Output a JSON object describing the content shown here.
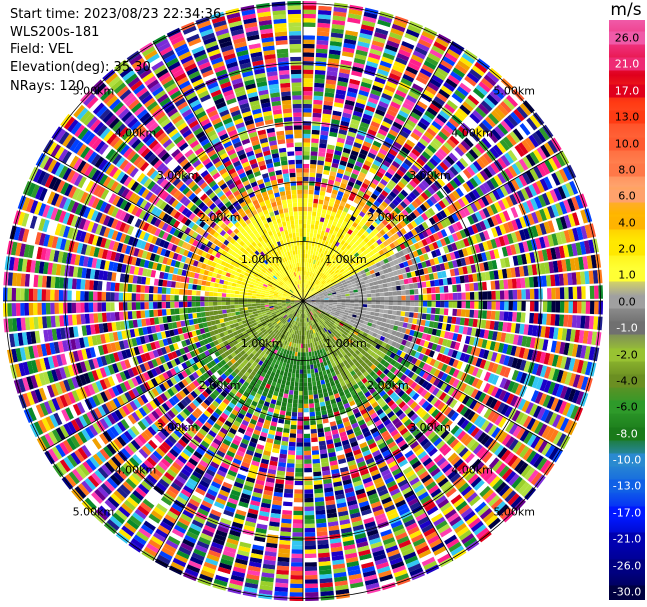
{
  "header": {
    "start_time": "Start time: 2023/08/23 22:34:36",
    "instrument": "WLS200s-181",
    "field": "Field: VEL",
    "elevation": "Elevation(deg): 35.30",
    "nrays": "NRays: 120"
  },
  "colorbar": {
    "unit": "m/s",
    "ticks": [
      "26.0",
      "21.0",
      "17.0",
      "13.0",
      "10.0",
      "8.0",
      "6.0",
      "4.0",
      "2.0",
      "1.0",
      "0.0",
      "-1.0",
      "-2.0",
      "-4.0",
      "-6.0",
      "-8.0",
      "-10.0",
      "-13.0",
      "-17.0",
      "-21.0",
      "-26.0",
      "-30.0"
    ],
    "colors": [
      "#f05aa8",
      "#ee2a73",
      "#e0001c",
      "#ff3b13",
      "#ff5a30",
      "#ff7848",
      "#ffa26c",
      "#ffb400",
      "#ffe800",
      "#ffff34",
      "#a0a0a0",
      "#707070",
      "#98c232",
      "#6b8f22",
      "#2e9a2a",
      "#1a7a1a",
      "#2a8ad0",
      "#1060e6",
      "#0018ff",
      "#0000b0",
      "#000080",
      "#000040"
    ]
  },
  "ring_labels": [
    "1.00km",
    "2.00km",
    "3.00km",
    "4.00km",
    "5.00km"
  ],
  "chart_data": {
    "type": "heatmap",
    "title": "",
    "field": "VEL",
    "units": "m/s",
    "elevation_deg": 35.3,
    "nrays": 120,
    "range_rings_km": [
      1,
      2,
      3,
      4,
      5
    ],
    "value_range": [
      -30,
      26
    ]
  }
}
